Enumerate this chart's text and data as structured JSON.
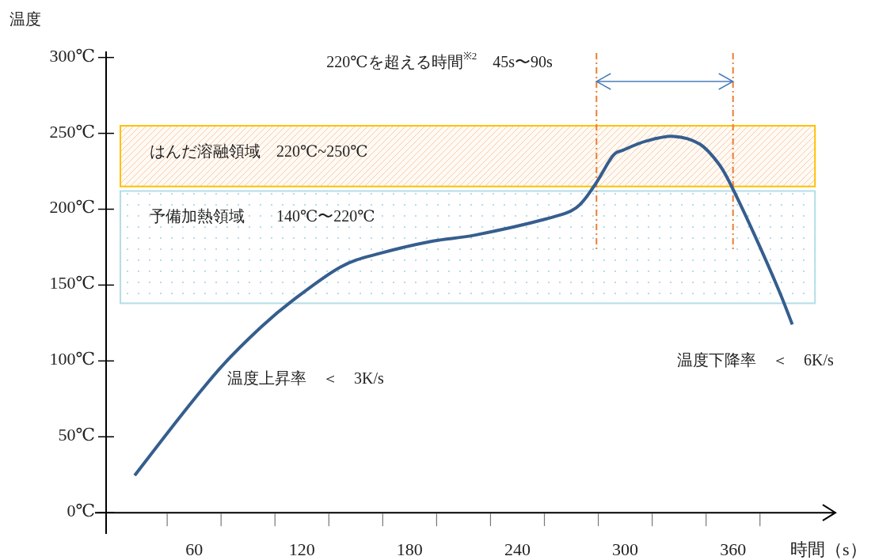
{
  "chart_data": {
    "type": "line",
    "xlabel": "時間（s）",
    "ylabel": "温度",
    "x": [
      26.9,
      53.4,
      75.4,
      97.5,
      115,
      141.6,
      163.7,
      193,
      216.6,
      256,
      272.6,
      282.8,
      293,
      299,
      312,
      327,
      341.4,
      352,
      359,
      372,
      385.5,
      393
    ],
    "series": [
      {
        "color": "#355e8e",
        "values": [
          24.5,
          65,
          96.5,
          122.6,
          140,
          162,
          171,
          179,
          183,
          193.6,
          200.9,
          215.5,
          235,
          239,
          245,
          248,
          243,
          230,
          215.5,
          183,
          146.6,
          124
        ]
      }
    ],
    "xlim": [
      11,
      417
    ],
    "ylim": [
      -14,
      304
    ],
    "xticks": [
      60,
      120,
      180,
      240,
      300,
      360
    ],
    "yticks": [
      {
        "value": 0,
        "label": "0℃"
      },
      {
        "value": 50,
        "label": "50℃"
      },
      {
        "value": 100,
        "label": "100℃"
      },
      {
        "value": 150,
        "label": "150℃"
      },
      {
        "value": 200,
        "label": "200℃"
      },
      {
        "value": 250,
        "label": "250℃"
      },
      {
        "value": 300,
        "label": "300℃"
      }
    ],
    "bands": [
      {
        "axis": "y",
        "from": 215,
        "to": 255,
        "label": "はんだ溶融領域　220℃~250℃",
        "color": "#ffc000"
      },
      {
        "axis": "y",
        "from": 138,
        "to": 212,
        "label": "予備加熱領域　　140℃〜220℃",
        "color": "#b4dde8"
      }
    ],
    "ref_lines": [
      {
        "axis": "x",
        "value": 284,
        "color": "#ed7d31",
        "line_style": "dashdot"
      },
      {
        "axis": "x",
        "value": 360,
        "color": "#ed7d31",
        "line_style": "dashdot"
      }
    ],
    "annotations": [
      "220℃を超える時間$^{※2}$　45s〜90s",
      "温度上昇率　＜　3K/s",
      "温度下降率　＜　6K/s"
    ],
    "marker": "none",
    "line_style": "solid"
  }
}
